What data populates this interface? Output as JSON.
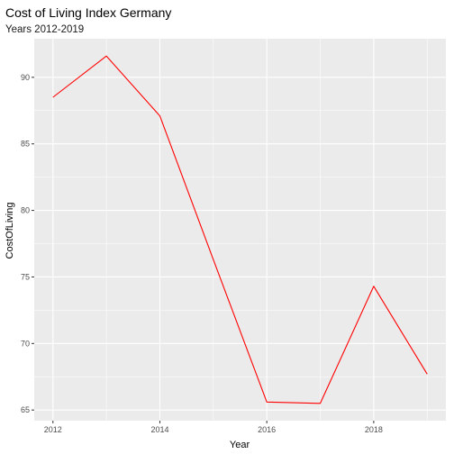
{
  "chart_data": {
    "type": "line",
    "title": "Cost of Living Index Germany",
    "subtitle": "Years 2012-2019",
    "xlabel": "Year",
    "ylabel": "CostOfLiving",
    "x": [
      2012,
      2013,
      2014,
      2015,
      2016,
      2017,
      2018,
      2019
    ],
    "series": [
      {
        "values": [
          88.5,
          91.6,
          87.1,
          76.3,
          65.6,
          65.5,
          74.3,
          67.7
        ],
        "color": "#ff0000"
      }
    ],
    "xticks": [
      2012,
      2014,
      2016,
      2018
    ],
    "xtick_labels": [
      "2012",
      "2014",
      "2016",
      "2018"
    ],
    "yticks": [
      65,
      70,
      75,
      80,
      85,
      90
    ],
    "ytick_labels": [
      "65",
      "70",
      "75",
      "80",
      "85",
      "90"
    ],
    "xlim": [
      2011.65,
      2019.35
    ],
    "ylim": [
      64.2,
      92.9
    ],
    "grid": true,
    "panel_background": "#ebebeb",
    "grid_color": "#ffffff"
  }
}
